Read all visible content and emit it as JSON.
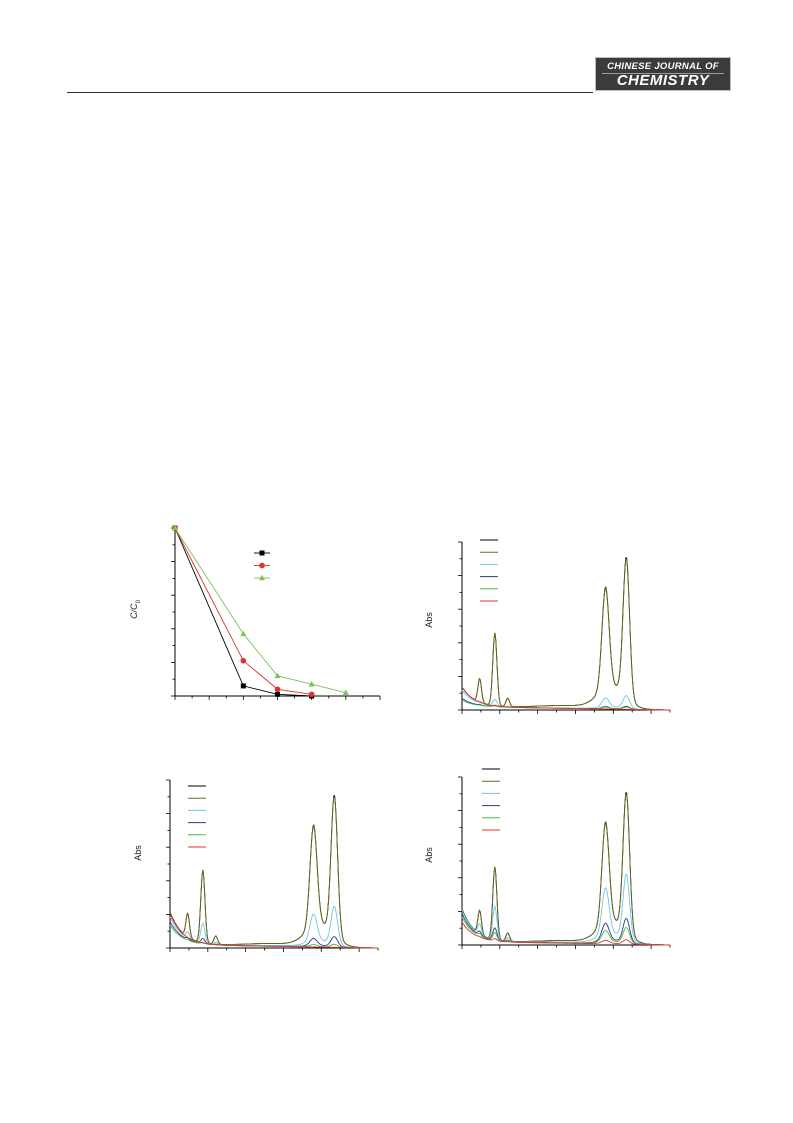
{
  "header": {
    "logo_line1": "CHINESE JOURNAL OF",
    "logo_line2": "CHEMISTRY"
  },
  "colors": {
    "black": "#000000",
    "olive": "#6b6b1f",
    "cyan": "#6ec6e6",
    "navy": "#2a3a8a",
    "green": "#4cba3c",
    "red": "#e53030",
    "legend_green": "#7cc45a"
  },
  "chart_data": [
    {
      "type": "line",
      "ylabel": "C/C0",
      "ylabel_main": "C/C",
      "ylabel_sub": "0",
      "xlim": [
        0,
        6
      ],
      "ylim": [
        0,
        1.0
      ],
      "x_ticks": 13,
      "y_ticks": 11,
      "legend_position": "top-right",
      "series": [
        {
          "color": "#000000",
          "marker": "square",
          "x": [
            0,
            2,
            3,
            4
          ],
          "y": [
            1.0,
            0.06,
            0.01,
            0.0
          ]
        },
        {
          "color": "#e53030",
          "marker": "circle",
          "x": [
            0,
            2,
            3,
            4
          ],
          "y": [
            1.0,
            0.21,
            0.04,
            0.01
          ]
        },
        {
          "color": "#7cc45a",
          "marker": "triangle",
          "x": [
            0,
            2,
            3,
            4,
            5
          ],
          "y": [
            1.0,
            0.37,
            0.12,
            0.07,
            0.02
          ]
        }
      ]
    },
    {
      "type": "line",
      "ylabel": "Abs",
      "ylim": [
        0,
        1.0
      ],
      "x_ticks": 12,
      "y_ticks": 11,
      "legend_position": "top-left",
      "series_colors": [
        "#000000",
        "#6b6b1f",
        "#6ec6e6",
        "#2a3a8a",
        "#4cba3c",
        "#e53030"
      ],
      "peak_heights": [
        1.0,
        0.99,
        0.09,
        0.02,
        0.015,
        0.0
      ],
      "base_heights": [
        0.12,
        0.12,
        0.1,
        0.05,
        0.04,
        0.12
      ]
    },
    {
      "type": "line",
      "ylabel": "Abs",
      "ylim": [
        0,
        1.0
      ],
      "x_ticks": 12,
      "y_ticks": 11,
      "legend_position": "top-left",
      "series_colors": [
        "#000000",
        "#6b6b1f",
        "#6ec6e6",
        "#2a3a8a",
        "#4cba3c",
        "#e53030"
      ],
      "peak_heights": [
        1.0,
        0.99,
        0.27,
        0.07,
        0.02,
        0.0
      ],
      "base_heights": [
        0.2,
        0.2,
        0.17,
        0.14,
        0.12,
        0.19
      ]
    },
    {
      "type": "line",
      "ylabel": "Abs",
      "ylim": [
        0,
        1.0
      ],
      "x_ticks": 12,
      "y_ticks": 11,
      "legend_position": "top-left",
      "series_colors": [
        "#000000",
        "#6b6b1f",
        "#6ec6e6",
        "#2a3a8a",
        "#4cba3c",
        "#e53030"
      ],
      "peak_heights": [
        1.0,
        0.99,
        0.46,
        0.17,
        0.11,
        0.03
      ],
      "base_heights": [
        0.2,
        0.2,
        0.19,
        0.17,
        0.15,
        0.12
      ]
    }
  ]
}
